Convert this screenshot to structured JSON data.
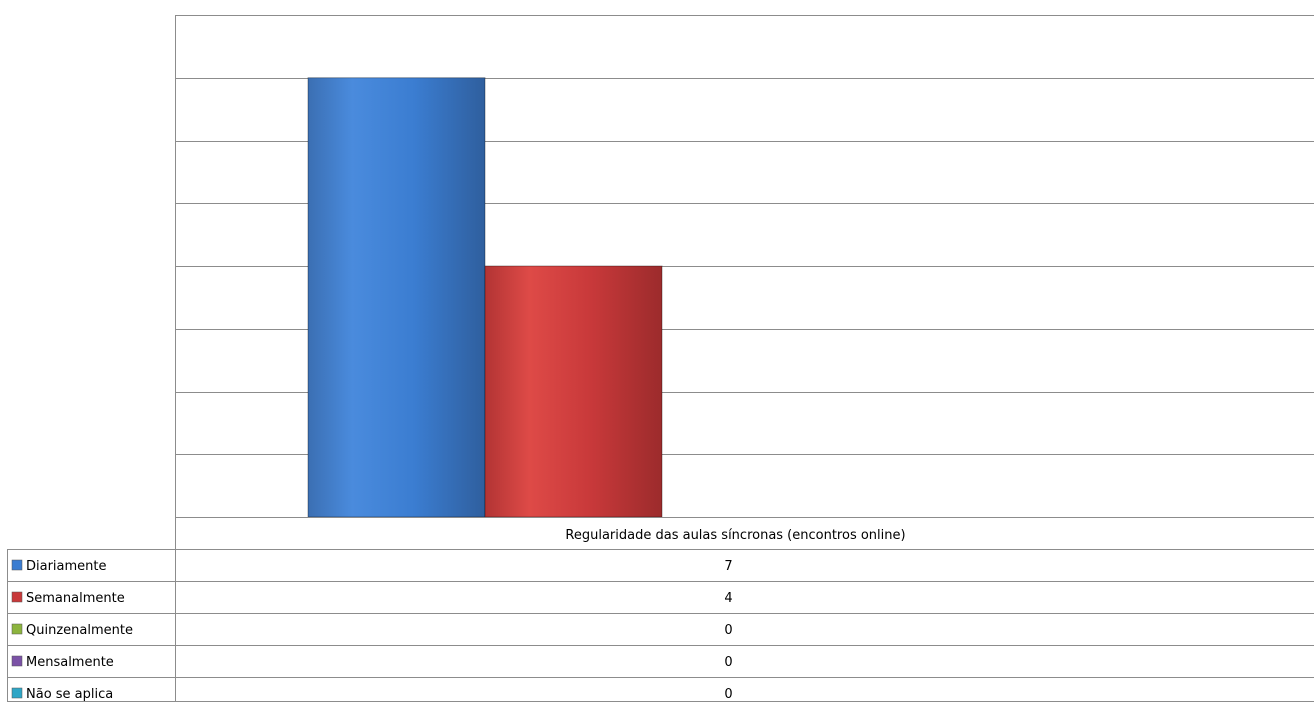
{
  "chart_data": {
    "type": "bar",
    "categories": [
      "Regularidade das aulas síncronas (encontros online)"
    ],
    "series": [
      {
        "name": "Diariamente",
        "values": [
          7
        ],
        "color": "#3B7DD1"
      },
      {
        "name": "Semanalmente",
        "values": [
          4
        ],
        "color": "#C8393A"
      },
      {
        "name": "Quinzenalmente",
        "values": [
          0
        ],
        "color": "#8CB43E"
      },
      {
        "name": "Mensalmente",
        "values": [
          0
        ],
        "color": "#7B52A6"
      },
      {
        "name": "Não se aplica",
        "values": [
          0
        ],
        "color": "#2FA6C6"
      }
    ],
    "ylim": [
      0,
      8
    ],
    "grid": true,
    "axis_tick_labels_visible": false,
    "legend": "data-table-left",
    "data_table": true
  }
}
